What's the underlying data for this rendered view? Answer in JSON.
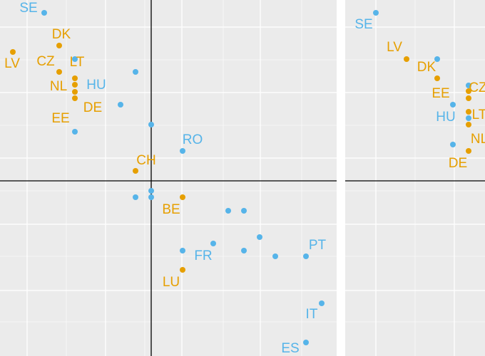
{
  "chart_data": [
    {
      "type": "scatter",
      "xlim": [
        -212,
        260
      ],
      "ylim": [
        -246,
        254
      ],
      "xticks": [
        -174,
        -64,
        43,
        153
      ],
      "yticks": [
        216,
        124,
        32,
        -61,
        -154
      ],
      "grid": true,
      "series": [
        {
          "color": "#56B4E9",
          "x": [
            -150,
            -107,
            -22,
            -43,
            -107,
            0,
            44,
            -22,
            0,
            0,
            108,
            130,
            152,
            87,
            44,
            130,
            174,
            217,
            239,
            217
          ],
          "values": [
            236,
            171,
            153,
            107,
            69,
            79,
            42,
            -23,
            -14,
            -23,
            -42,
            -42,
            -79,
            -88,
            -98,
            -98,
            -106,
            -106,
            -172,
            -227
          ],
          "labels": [
            "SE",
            null,
            null,
            "HU",
            null,
            null,
            "RO",
            null,
            null,
            null,
            null,
            null,
            null,
            null,
            "FR",
            null,
            null,
            "PT",
            "IT",
            "ES"
          ]
        },
        {
          "color": "#E69F00",
          "x": [
            -129,
            -194,
            -129,
            -107,
            -107,
            -107,
            -107,
            -22,
            44,
            44
          ],
          "values": [
            190,
            181,
            153,
            144,
            135,
            125,
            116,
            14,
            -23,
            -125
          ],
          "labels": [
            "DK",
            "LV",
            "CZ",
            "LT",
            "NL",
            "EE",
            "DE",
            "CH",
            "BE",
            "LU"
          ]
        }
      ]
    },
    {
      "type": "scatter",
      "xlim": [
        0,
        196
      ],
      "ylim": [
        -246,
        254
      ],
      "xticks": [
        43,
        153
      ],
      "yticks": [
        216,
        124,
        32,
        -61,
        -154
      ],
      "grid": true,
      "series": [
        {
          "color": "#56B4E9",
          "x": [
            43,
            129,
            151,
            173,
            173,
            151
          ],
          "values": [
            236,
            171,
            107,
            134,
            88,
            51
          ],
          "labels": [
            "SE",
            null,
            "HU",
            null,
            null,
            null
          ]
        },
        {
          "color": "#E69F00",
          "x": [
            86,
            129,
            173,
            173,
            173,
            173,
            173
          ],
          "values": [
            171,
            144,
            126,
            116,
            97,
            79,
            42
          ],
          "labels": [
            "LV",
            "DK",
            "CZ",
            "EE",
            "LT",
            "NL",
            "DE"
          ]
        }
      ]
    }
  ]
}
